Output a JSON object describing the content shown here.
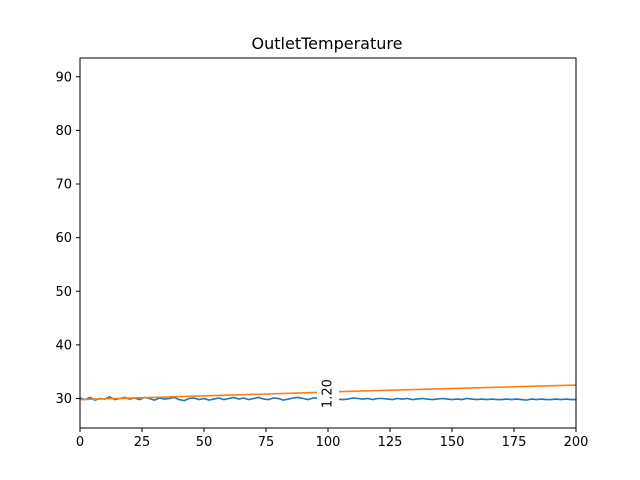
{
  "chart_data": {
    "type": "line",
    "title": "OutletTemperature",
    "xlabel": "",
    "ylabel": "",
    "xlim": [
      0,
      200
    ],
    "ylim": [
      24.5,
      93.5
    ],
    "x_ticks": [
      0,
      25,
      50,
      75,
      100,
      125,
      150,
      175,
      200
    ],
    "y_ticks": [
      30,
      40,
      50,
      60,
      70,
      80,
      90
    ],
    "grid": false,
    "legend": "none",
    "series": [
      {
        "color": "#1f77b4",
        "x": [
          0,
          2,
          4,
          6,
          8,
          10,
          12,
          14,
          16,
          18,
          20,
          22,
          24,
          26,
          28,
          30,
          32,
          34,
          36,
          38,
          40,
          42,
          44,
          46,
          48,
          50,
          52,
          54,
          56,
          58,
          60,
          62,
          64,
          66,
          68,
          70,
          72,
          74,
          76,
          78,
          80,
          82,
          84,
          86,
          88,
          90,
          92,
          94,
          106,
          108,
          110,
          112,
          114,
          116,
          118,
          120,
          122,
          124,
          126,
          128,
          130,
          132,
          134,
          136,
          138,
          140,
          142,
          144,
          146,
          148,
          150,
          152,
          154,
          156,
          158,
          160,
          162,
          164,
          166,
          168,
          170,
          172,
          174,
          176,
          178,
          180,
          182,
          184,
          186,
          188,
          190,
          192,
          194,
          196,
          198,
          200
        ],
        "y": [
          30.1,
          29.8,
          30.2,
          29.7,
          30.0,
          29.9,
          30.3,
          29.8,
          30.0,
          30.2,
          29.9,
          30.1,
          29.8,
          30.2,
          30.0,
          29.7,
          30.1,
          29.9,
          30.0,
          30.2,
          29.8,
          29.6,
          30.0,
          30.1,
          29.8,
          30.0,
          29.7,
          29.9,
          30.1,
          29.8,
          30.0,
          30.2,
          29.9,
          30.1,
          29.8,
          30.0,
          30.2,
          29.9,
          29.8,
          30.1,
          30.0,
          29.7,
          29.9,
          30.1,
          30.2,
          30.0,
          29.8,
          30.1,
          29.8,
          29.9,
          30.1,
          30.0,
          29.9,
          30.0,
          29.8,
          30.0,
          30.0,
          29.9,
          29.8,
          30.0,
          29.9,
          30.0,
          29.8,
          29.9,
          30.0,
          29.9,
          29.8,
          29.9,
          30.0,
          29.9,
          29.8,
          29.9,
          29.8,
          30.0,
          29.9,
          29.8,
          29.9,
          29.8,
          29.9,
          29.8,
          29.8,
          29.9,
          29.8,
          29.9,
          29.8,
          29.7,
          29.9,
          29.8,
          29.9,
          29.8,
          29.8,
          29.9,
          29.8,
          29.9,
          29.8,
          29.8
        ]
      },
      {
        "color": "#ff7f0e",
        "x": [
          0,
          94,
          106,
          200
        ],
        "y": [
          29.8,
          31.1,
          31.3,
          32.5
        ]
      }
    ],
    "annotations": [
      {
        "text": "1.20",
        "x": 100,
        "y": 29.8,
        "rotation": 90
      }
    ]
  }
}
